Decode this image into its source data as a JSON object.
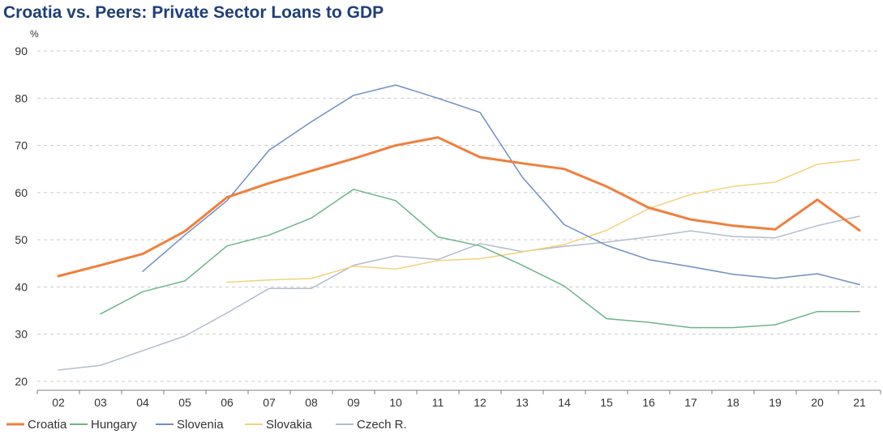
{
  "chart_data": {
    "type": "line",
    "title": "Croatia vs. Peers: Private Sector Loans to GDP",
    "ylabel": "%",
    "xlabel": "",
    "categories": [
      "02",
      "03",
      "04",
      "05",
      "06",
      "07",
      "08",
      "09",
      "10",
      "11",
      "12",
      "13",
      "14",
      "15",
      "16",
      "17",
      "18",
      "19",
      "20",
      "21"
    ],
    "ylim": [
      20,
      90
    ],
    "yticks": [
      20,
      30,
      40,
      50,
      60,
      70,
      80,
      90
    ],
    "grid": true,
    "legend": "bottom-left",
    "series": [
      {
        "name": "Croatia",
        "color": "#f07f3c",
        "width": 3,
        "values": [
          42.3,
          44.6,
          47.0,
          51.8,
          59.0,
          62.0,
          64.6,
          67.2,
          70.0,
          71.7,
          67.5,
          66.2,
          65.0,
          61.3,
          56.8,
          54.3,
          53.0,
          52.2,
          58.5,
          52.0
        ]
      },
      {
        "name": "Hungary",
        "color": "#6db48a",
        "width": 1.5,
        "values": [
          null,
          34.3,
          39.0,
          41.3,
          48.7,
          51.0,
          54.6,
          60.7,
          58.3,
          50.6,
          48.7,
          44.6,
          40.2,
          33.3,
          32.5,
          31.4,
          31.4,
          32.0,
          34.8,
          34.8
        ]
      },
      {
        "name": "Slovenia",
        "color": "#6f8fc4",
        "width": 1.5,
        "values": [
          null,
          null,
          43.3,
          51.0,
          58.3,
          69.0,
          75.0,
          80.6,
          82.8,
          80.0,
          77.0,
          63.3,
          53.2,
          48.8,
          45.8,
          44.3,
          42.7,
          41.8,
          42.8,
          40.5
        ]
      },
      {
        "name": "Slovakia",
        "color": "#f2d27a",
        "width": 1.5,
        "values": [
          null,
          null,
          null,
          null,
          41.0,
          41.5,
          41.8,
          44.4,
          43.8,
          45.6,
          46.0,
          47.4,
          49.0,
          52.0,
          56.6,
          59.6,
          61.3,
          62.2,
          66.0,
          67.0
        ]
      },
      {
        "name": "Czech R.",
        "color": "#b3bccd",
        "width": 1.5,
        "values": [
          22.4,
          23.4,
          26.5,
          29.6,
          34.5,
          39.7,
          39.7,
          44.6,
          46.6,
          45.8,
          49.2,
          47.5,
          48.6,
          49.5,
          50.6,
          51.9,
          50.7,
          50.4,
          53.0,
          55.0
        ]
      }
    ]
  }
}
